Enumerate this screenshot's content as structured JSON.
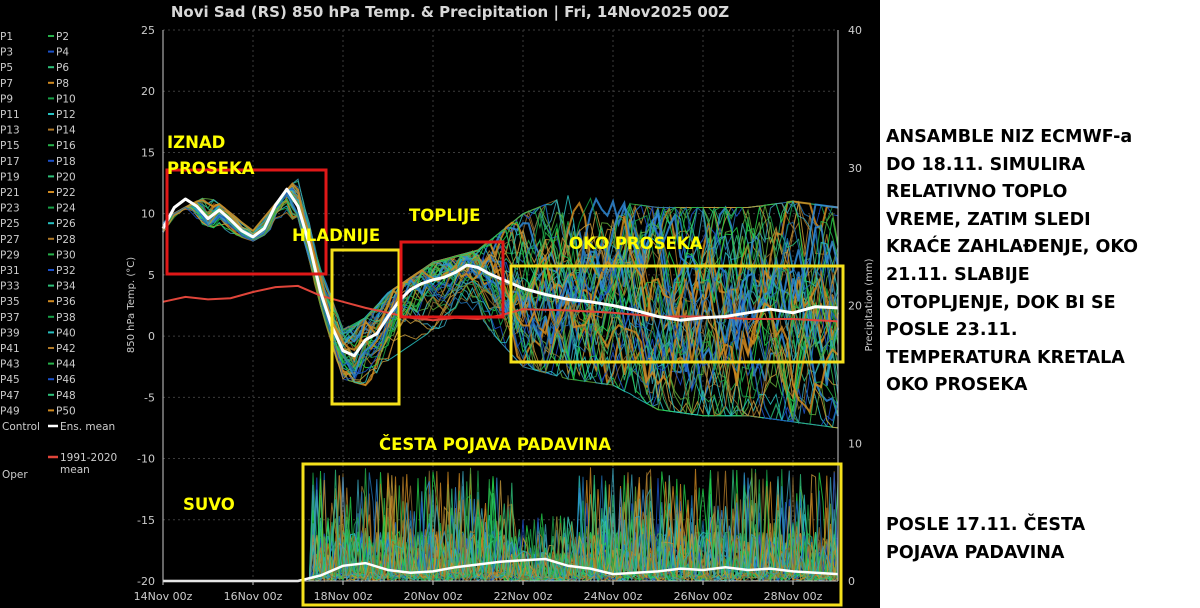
{
  "chart_data": {
    "type": "line",
    "title": "Novi Sad  (RS)  850 hPa Temp. & Precipitation | Fri, 14Nov2025 00Z",
    "ylabel": "850 hPa Temp. (°C)",
    "y2label": "Precipitation (mm)",
    "ylim": [
      -20,
      25
    ],
    "y2lim": [
      0,
      40
    ],
    "yticks": [
      "25",
      "20",
      "15",
      "10",
      "5",
      "0",
      "-5",
      "-10",
      "-15",
      "-20"
    ],
    "y2ticks": [
      "40",
      "30",
      "20",
      "10",
      "0"
    ],
    "xlim": [
      0,
      15
    ],
    "xticks": [
      {
        "x": 0,
        "label": "14Nov 00z"
      },
      {
        "x": 2,
        "label": "16Nov 00z"
      },
      {
        "x": 4,
        "label": "18Nov 00z"
      },
      {
        "x": 6,
        "label": "20Nov 00z"
      },
      {
        "x": 8,
        "label": "22Nov 00z"
      },
      {
        "x": 10,
        "label": "24Nov 00z"
      },
      {
        "x": 12,
        "label": "26Nov 00z"
      },
      {
        "x": 14,
        "label": "28Nov 00z"
      }
    ],
    "grid": true,
    "legend": {
      "members": [
        "P1",
        "P2",
        "P3",
        "P4",
        "P5",
        "P6",
        "P7",
        "P8",
        "P9",
        "P10",
        "P11",
        "P12",
        "P13",
        "P14",
        "P15",
        "P16",
        "P17",
        "P18",
        "P19",
        "P20",
        "P21",
        "P22",
        "P23",
        "P24",
        "P25",
        "P26",
        "P27",
        "P28",
        "P29",
        "P30",
        "P31",
        "P32",
        "P33",
        "P34",
        "P35",
        "P36",
        "P37",
        "P38",
        "P39",
        "P40",
        "P41",
        "P42",
        "P43",
        "P44",
        "P45",
        "P46",
        "P47",
        "P48",
        "P49",
        "P50"
      ],
      "control": "Control",
      "ens_mean": "Ens. mean",
      "oper": "Oper",
      "climate_line1": "1991-2020",
      "climate_line2": "mean"
    },
    "ens_mean_temp": {
      "x": [
        0,
        0.25,
        0.5,
        0.75,
        1,
        1.25,
        1.5,
        1.75,
        2,
        2.25,
        2.5,
        2.75,
        3,
        3.25,
        3.5,
        3.75,
        4,
        4.25,
        4.5,
        4.75,
        5,
        5.25,
        5.5,
        5.75,
        6,
        6.25,
        6.5,
        6.75,
        7,
        7.25,
        7.5,
        7.75,
        8,
        8.5,
        9,
        9.5,
        10,
        10.5,
        11,
        11.5,
        12,
        12.5,
        13,
        13.5,
        14,
        14.5,
        15
      ],
      "y": [
        8.8,
        10.5,
        11.2,
        10.6,
        9.6,
        10.3,
        9.5,
        8.6,
        8.1,
        8.8,
        10.7,
        12.0,
        10.6,
        7.5,
        3.6,
        0.8,
        -1.2,
        -1.6,
        -0.3,
        0.2,
        1.6,
        2.9,
        3.8,
        4.3,
        4.6,
        4.8,
        5.2,
        5.8,
        5.6,
        5.1,
        4.7,
        4.3,
        3.9,
        3.4,
        3.0,
        2.8,
        2.5,
        2.1,
        1.6,
        1.3,
        1.5,
        1.6,
        1.9,
        2.2,
        1.9,
        2.4,
        2.3
      ]
    },
    "climate_mean_temp": {
      "x": [
        0,
        0.5,
        1,
        1.5,
        2,
        2.5,
        3,
        3.5,
        4,
        4.5,
        5,
        5.5,
        6,
        6.5,
        7,
        7.5,
        8,
        9,
        10,
        11,
        12,
        13,
        14,
        15
      ],
      "y": [
        2.8,
        3.2,
        3.0,
        3.1,
        3.6,
        4.0,
        4.1,
        3.3,
        2.8,
        2.3,
        1.9,
        1.5,
        1.3,
        1.5,
        1.4,
        1.7,
        2.2,
        2.1,
        1.9,
        1.6,
        1.6,
        1.4,
        1.4,
        1.2
      ]
    },
    "ens_mean_precip": {
      "x": [
        0,
        1,
        2,
        3,
        3.5,
        4,
        4.5,
        5,
        5.5,
        6,
        6.5,
        7,
        7.5,
        8,
        8.5,
        9,
        9.5,
        10,
        10.5,
        11,
        11.5,
        12,
        12.5,
        13,
        13.5,
        14,
        14.5,
        15
      ],
      "y": [
        0,
        0,
        0,
        0,
        0.4,
        1.1,
        1.3,
        0.8,
        0.6,
        0.7,
        1.0,
        1.2,
        1.4,
        1.5,
        1.6,
        1.1,
        0.9,
        0.5,
        0.6,
        0.7,
        0.9,
        0.8,
        1.0,
        0.8,
        0.9,
        0.7,
        0.6,
        0.5
      ]
    },
    "member_temp_spread": {
      "x": [
        0,
        1,
        2,
        3,
        3.5,
        4,
        4.5,
        5,
        6,
        7,
        8,
        9,
        10,
        11,
        12,
        13,
        14,
        15
      ],
      "low": [
        8.0,
        9.0,
        7.8,
        9.8,
        2.5,
        -3.5,
        -4.0,
        -2.0,
        0.5,
        1.5,
        -2.5,
        -3.5,
        -4.0,
        -6.0,
        -6.5,
        -6.5,
        -7.0,
        -7.5
      ],
      "high": [
        9.5,
        11.5,
        8.6,
        13.0,
        5.5,
        0.5,
        1.5,
        3.5,
        6.0,
        7.0,
        10.0,
        11.5,
        11.0,
        10.5,
        10.5,
        10.5,
        11.0,
        10.5
      ]
    },
    "annotations": [
      {
        "text_lines": [
          "IZNAD",
          "PROSEKA"
        ],
        "box": "red",
        "x_range": [
          0,
          3.75
        ],
        "y_range": [
          5,
          13.5
        ]
      },
      {
        "text_lines": [
          "HLADNIJE"
        ],
        "box": "yellow",
        "x_range": [
          3.75,
          5.2
        ],
        "y_range": [
          -5.6,
          7
        ]
      },
      {
        "text_lines": [
          "TOPLIJE"
        ],
        "box": "red",
        "x_range": [
          5.5,
          7.9
        ],
        "y_range": [
          1.5,
          7.9
        ]
      },
      {
        "text_lines": [
          "OKO PROSEKA"
        ],
        "box": "yellow",
        "x_range": [
          8.2,
          15
        ],
        "y_range": [
          -2.2,
          5.8
        ]
      },
      {
        "text_lines": [
          "ČESTA POJAVA PADAVINA"
        ],
        "box": "yellow",
        "x_range": [
          3.1,
          15
        ]
      },
      {
        "text_lines": [
          "SUVO"
        ]
      }
    ],
    "colors": {
      "ens_mean": "#ffffff",
      "climate_mean": "#e0453a",
      "background": "#000000",
      "annotation_text": "#ffff00",
      "box_red": "#e01818",
      "box_yellow": "#f5e11b"
    }
  },
  "notes": {
    "top": [
      "ANSAMBLE NIZ ECMWF-a",
      "DO 18.11. SIMULIRA",
      "RELATIVNO TOPLO",
      "VREME, ZATIM SLEDI",
      "KRAĆE ZAHLAĐENJE, OKO",
      "21.11. SLABIJE",
      "OTOPLJENJE, DOK BI SE",
      "POSLE 23.11.",
      "TEMPERATURA KRETALA",
      "OKO PROSEKA"
    ],
    "bottom": [
      "POSLE 17.11. ČESTA",
      "POJAVA PADAVINA"
    ]
  }
}
